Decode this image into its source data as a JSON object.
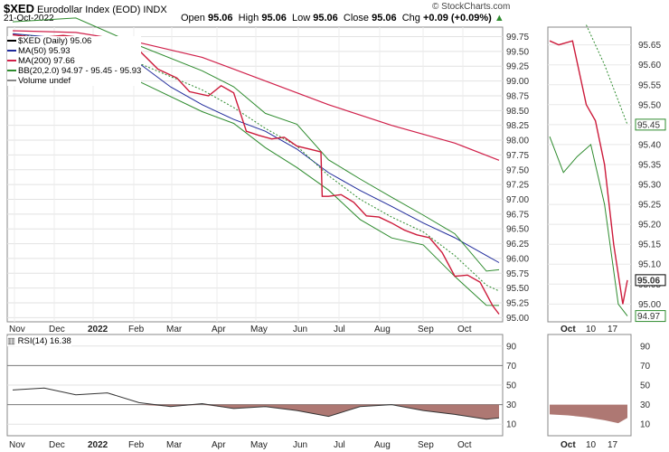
{
  "header": {
    "symbol": "$XED",
    "name": "Eurodollar Index (EOD)",
    "exchange": "INDX",
    "date": "21-Oct-2022",
    "open_label": "Open",
    "open": "95.06",
    "high_label": "High",
    "high": "95.06",
    "low_label": "Low",
    "low": "95.06",
    "close_label": "Close",
    "close": "95.06",
    "chg_label": "Chg",
    "chg": "+0.09 (+0.09%)",
    "watermark": "© StockCharts.com"
  },
  "legend": [
    {
      "text": "$XED (Daily) 95.06",
      "color": "#000000"
    },
    {
      "text": "MA(50) 95.93",
      "color": "#1f2a9b"
    },
    {
      "text": "MA(200) 97.66",
      "color": "#d0204a"
    },
    {
      "text": "BB(20,2.0) 94.97 - 95.45 - 95.93",
      "color": "#2e8b2e"
    },
    {
      "text": "Volume undef",
      "color": "#888888"
    }
  ],
  "rsi_label": "RSI(14) 16.38",
  "colors": {
    "price_up": "#000000",
    "price_down": "#cc1a3a",
    "ma50": "#1f2a9b",
    "ma200": "#d0204a",
    "bb": "#2e8b2e",
    "rsi_fill": "#a0605a",
    "grid": "#d8d8d8"
  },
  "chart_data": [
    {
      "type": "line",
      "title": "$XED Daily",
      "x_ticks": [
        "Nov",
        "Dec",
        "2022",
        "Feb",
        "Mar",
        "Apr",
        "May",
        "Jun",
        "Jul",
        "Aug",
        "Sep",
        "Oct"
      ],
      "ylim": [
        94.96,
        99.88
      ],
      "y_ticks": [
        95.0,
        95.25,
        95.5,
        95.75,
        96.0,
        96.25,
        96.5,
        96.75,
        97.0,
        97.25,
        97.5,
        97.75,
        98.0,
        98.25,
        98.5,
        98.75,
        99.0,
        99.25,
        99.5,
        99.75
      ],
      "series": [
        {
          "name": "$XED",
          "values": [
            [
              0,
              99.78
            ],
            [
              4,
              99.73
            ],
            [
              8,
              99.77
            ],
            [
              12,
              99.72
            ],
            [
              16,
              99.68
            ],
            [
              20,
              99.52
            ],
            [
              23,
              99.2
            ],
            [
              26,
              99.05
            ],
            [
              28,
              98.82
            ],
            [
              31,
              98.75
            ],
            [
              33,
              98.92
            ],
            [
              35,
              98.8
            ],
            [
              37,
              98.15
            ],
            [
              39,
              98.08
            ],
            [
              41,
              98.02
            ],
            [
              43,
              98.05
            ],
            [
              45,
              97.9
            ],
            [
              47,
              97.85
            ],
            [
              48.8,
              97.8
            ],
            [
              49,
              97.05
            ],
            [
              50,
              97.05
            ],
            [
              52,
              97.08
            ],
            [
              54,
              96.95
            ],
            [
              56,
              96.72
            ],
            [
              58,
              96.7
            ],
            [
              60,
              96.6
            ],
            [
              62,
              96.48
            ],
            [
              64,
              96.4
            ],
            [
              66,
              96.35
            ],
            [
              68,
              96.1
            ],
            [
              69,
              95.9
            ],
            [
              70,
              95.7
            ],
            [
              72,
              95.72
            ],
            [
              74,
              95.6
            ],
            [
              75,
              95.4
            ],
            [
              76,
              95.2
            ],
            [
              77,
              95.06
            ]
          ]
        },
        {
          "name": "MA(50)",
          "values": [
            [
              0,
              99.8
            ],
            [
              10,
              99.7
            ],
            [
              15,
              99.6
            ],
            [
              20,
              99.3
            ],
            [
              25,
              98.9
            ],
            [
              30,
              98.6
            ],
            [
              35,
              98.35
            ],
            [
              40,
              98.15
            ],
            [
              45,
              97.85
            ],
            [
              50,
              97.45
            ],
            [
              55,
              97.15
            ],
            [
              60,
              96.88
            ],
            [
              65,
              96.6
            ],
            [
              70,
              96.35
            ],
            [
              75,
              96.05
            ],
            [
              77,
              95.93
            ]
          ]
        },
        {
          "name": "MA(200)",
          "values": [
            [
              0,
              99.85
            ],
            [
              10,
              99.82
            ],
            [
              20,
              99.65
            ],
            [
              30,
              99.4
            ],
            [
              40,
              99.0
            ],
            [
              50,
              98.6
            ],
            [
              60,
              98.25
            ],
            [
              70,
              97.95
            ],
            [
              77,
              97.66
            ]
          ]
        },
        {
          "name": "BB middle",
          "values": [
            [
              0,
              99.78
            ],
            [
              10,
              99.7
            ],
            [
              20,
              99.3
            ],
            [
              30,
              98.85
            ],
            [
              35,
              98.55
            ],
            [
              40,
              98.2
            ],
            [
              45,
              97.9
            ],
            [
              50,
              97.4
            ],
            [
              55,
              97.0
            ],
            [
              60,
              96.7
            ],
            [
              65,
              96.45
            ],
            [
              70,
              96.05
            ],
            [
              75,
              95.55
            ],
            [
              77,
              95.45
            ]
          ]
        }
      ]
    },
    {
      "type": "line",
      "title": "RSI(14)",
      "ylim": [
        0,
        100
      ],
      "y_ticks": [
        10,
        30,
        50,
        70,
        90
      ],
      "series": [
        {
          "name": "RSI(14)",
          "values": [
            [
              0,
              45
            ],
            [
              5,
              47
            ],
            [
              10,
              40
            ],
            [
              15,
              42
            ],
            [
              20,
              32
            ],
            [
              25,
              28
            ],
            [
              30,
              31
            ],
            [
              35,
              26
            ],
            [
              40,
              28
            ],
            [
              45,
              24
            ],
            [
              50,
              18
            ],
            [
              55,
              28
            ],
            [
              60,
              30
            ],
            [
              65,
              24
            ],
            [
              70,
              20
            ],
            [
              75,
              15
            ],
            [
              77,
              16.38
            ]
          ]
        }
      ]
    },
    {
      "type": "line",
      "title": "Zoom",
      "x_ticks": [
        "Oct",
        "10",
        "17"
      ],
      "ylim": [
        94.96,
        95.69
      ],
      "y_ticks": [
        95.0,
        95.05,
        95.1,
        95.15,
        95.2,
        95.25,
        95.3,
        95.35,
        95.4,
        95.45,
        95.5,
        95.55,
        95.6,
        95.65
      ],
      "value_labels": [
        "95.45",
        "95.06",
        "94.97"
      ],
      "series": [
        {
          "name": "$XED",
          "values": [
            [
              0,
              95.66
            ],
            [
              2,
              95.65
            ],
            [
              5,
              95.66
            ],
            [
              8,
              95.5
            ],
            [
              10,
              95.46
            ],
            [
              12,
              95.35
            ],
            [
              14,
              95.15
            ],
            [
              16,
              95.0
            ],
            [
              17,
              95.06
            ]
          ]
        }
      ]
    }
  ]
}
